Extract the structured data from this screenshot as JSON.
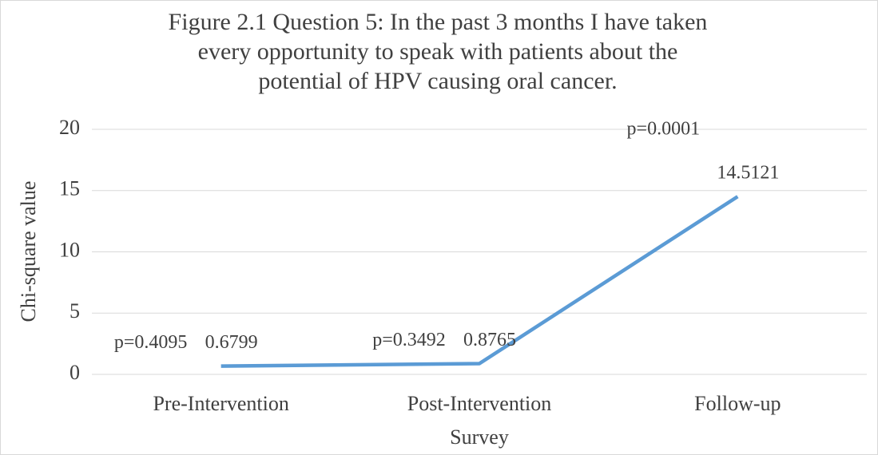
{
  "chart_data": {
    "type": "line",
    "title": [
      "Figure 2.1 Question 5: In the past 3 months I have taken",
      "every opportunity to speak with patients about the",
      "potential of HPV causing oral cancer."
    ],
    "x_label": "Survey",
    "y_label": "Chi-square value",
    "categories": [
      "Pre-Intervention",
      "Post-Intervention",
      "Follow-up"
    ],
    "series": [
      {
        "name": "Chi-square value",
        "color": "#5b9bd5",
        "values": [
          0.6799,
          0.8765,
          14.5121
        ]
      }
    ],
    "annotations": [
      "p=0.4095",
      "p=0.3492",
      "p=0.0001"
    ],
    "ylim": [
      0,
      20
    ],
    "yticks": [
      0,
      5,
      10,
      15,
      20
    ],
    "grid": true
  }
}
